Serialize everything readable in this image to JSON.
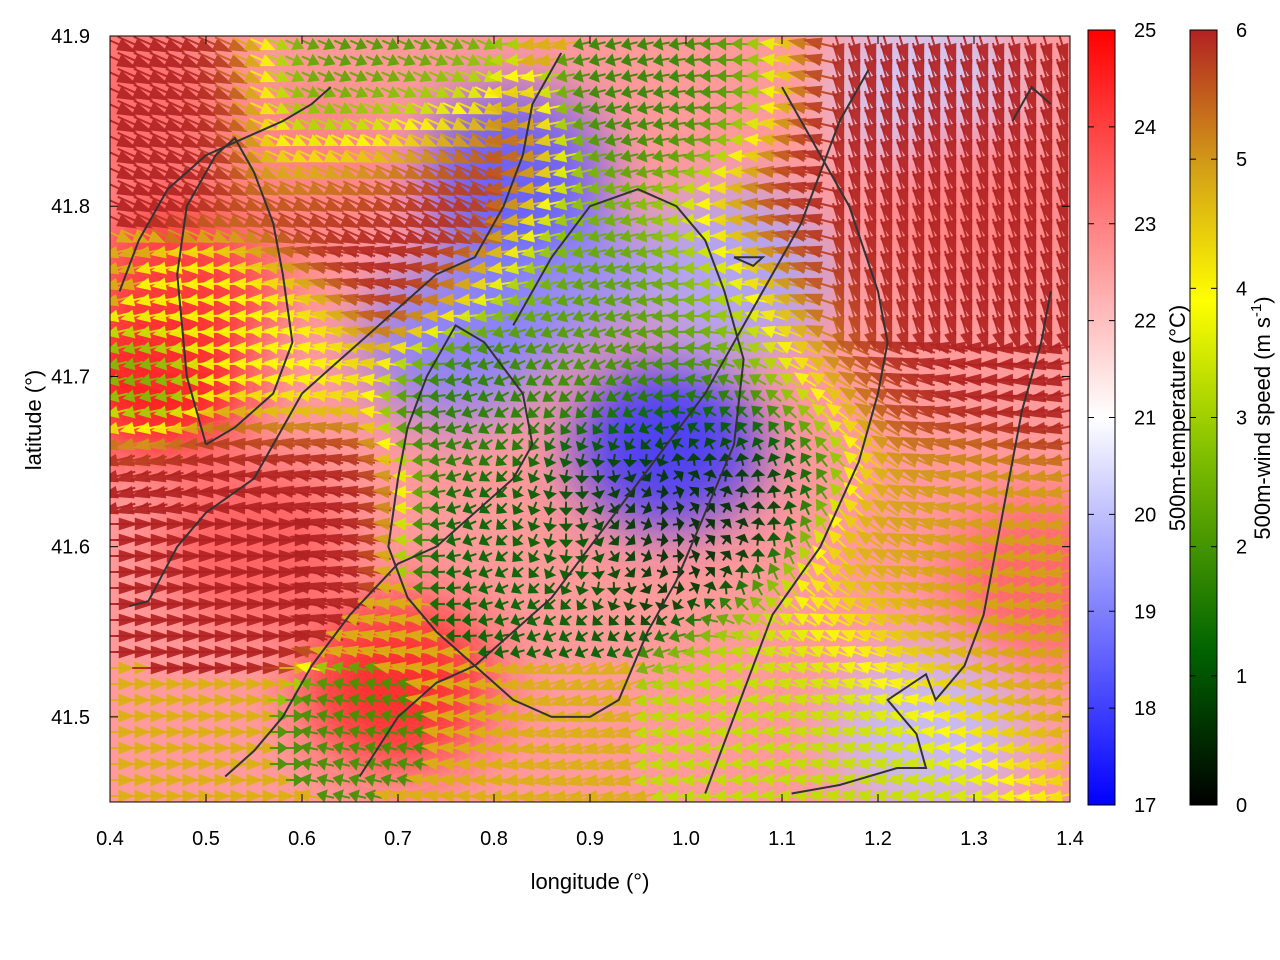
{
  "chart_data": {
    "type": "heatmap",
    "title": "",
    "xlabel": "longitude (°)",
    "ylabel": "latitude (°)",
    "xlim": [
      0.4,
      1.4
    ],
    "ylim": [
      41.45,
      41.9
    ],
    "x_ticks": [
      "0.4",
      "0.5",
      "0.6",
      "0.7",
      "0.8",
      "0.9",
      "1.0",
      "1.1",
      "1.2",
      "1.3",
      "1.4"
    ],
    "y_ticks": [
      "41.5",
      "41.6",
      "41.7",
      "41.8",
      "41.9"
    ],
    "grid": false,
    "layers": {
      "temperature": {
        "label": "500m-temperature (°C)",
        "range": [
          17,
          25
        ],
        "ticks": [
          "17",
          "18",
          "19",
          "20",
          "21",
          "22",
          "23",
          "24",
          "25"
        ],
        "colors": [
          "#0000ff",
          "#ffffff",
          "#ff0000"
        ]
      },
      "wind_speed": {
        "label_main": "500m-wind speed (m s",
        "label_sup": "-1",
        "label_end": ")",
        "range": [
          0,
          6
        ],
        "ticks": [
          "0",
          "1",
          "2",
          "3",
          "4",
          "5",
          "6"
        ],
        "colors": [
          "#000000",
          "#006400",
          "#7fbf00",
          "#ffff00",
          "#d4a017",
          "#b22222"
        ],
        "display": "vector arrows colored by speed"
      },
      "coastline": {
        "color": "#333333",
        "display": "contour lines"
      }
    },
    "temperature_blobs": [
      {
        "lon": 0.98,
        "lat": 41.66,
        "temp": 17.8
      },
      {
        "lon": 0.86,
        "lat": 41.76,
        "temp": 19.2
      },
      {
        "lon": 0.82,
        "lat": 41.82,
        "temp": 18.4
      },
      {
        "lon": 0.76,
        "lat": 41.72,
        "temp": 19.0
      },
      {
        "lon": 1.05,
        "lat": 41.76,
        "temp": 19.6
      },
      {
        "lon": 1.25,
        "lat": 41.49,
        "temp": 20.0
      },
      {
        "lon": 1.25,
        "lat": 41.87,
        "temp": 20.2
      },
      {
        "lon": 0.45,
        "lat": 41.7,
        "temp": 24.8
      },
      {
        "lon": 0.48,
        "lat": 41.76,
        "temp": 24.2
      },
      {
        "lon": 0.7,
        "lat": 41.52,
        "temp": 24.5
      },
      {
        "lon": 0.55,
        "lat": 41.6,
        "temp": 23.6
      },
      {
        "lon": 0.6,
        "lat": 41.82,
        "temp": 23.0
      },
      {
        "lon": 0.42,
        "lat": 41.86,
        "temp": 23.4
      },
      {
        "lon": 1.37,
        "lat": 41.58,
        "temp": 23.5
      },
      {
        "lon": 1.3,
        "lat": 41.8,
        "temp": 23.0
      }
    ],
    "wind_zones": [
      {
        "lon": 0.98,
        "lat": 41.64,
        "speed": 0.4,
        "rad": 0.07
      },
      {
        "lon": 0.85,
        "lat": 41.6,
        "speed": 1.2,
        "rad": 0.05
      },
      {
        "lon": 0.95,
        "lat": 41.72,
        "speed": 2.0,
        "rad": 0.09
      },
      {
        "lon": 0.8,
        "lat": 41.69,
        "speed": 1.5,
        "rad": 0.04
      },
      {
        "lon": 0.65,
        "lat": 41.49,
        "speed": 1.8,
        "rad": 0.03
      },
      {
        "lon": 0.66,
        "lat": 41.87,
        "speed": 1.8,
        "rad": 0.06
      },
      {
        "lon": 1.0,
        "lat": 41.86,
        "speed": 1.6,
        "rad": 0.05
      },
      {
        "lon": 1.17,
        "lat": 41.49,
        "speed": 3.0,
        "rad": 0.08
      },
      {
        "lon": 0.55,
        "lat": 41.72,
        "speed": 3.5,
        "rad": 0.05
      },
      {
        "lon": 0.45,
        "lat": 41.69,
        "speed": 2.0,
        "rad": 0.03
      },
      {
        "lon": 0.7,
        "lat": 41.8,
        "speed": 6.0,
        "rad": 0.07
      },
      {
        "lon": 0.5,
        "lat": 41.62,
        "speed": 6.0,
        "rad": 0.07
      },
      {
        "lon": 0.45,
        "lat": 41.87,
        "speed": 6.0,
        "rad": 0.06
      },
      {
        "lon": 1.22,
        "lat": 41.79,
        "speed": 6.0,
        "rad": 0.1
      },
      {
        "lon": 1.38,
        "lat": 41.72,
        "speed": 6.0,
        "rad": 0.05
      },
      {
        "lon": 1.3,
        "lat": 41.56,
        "speed": 4.8,
        "rad": 0.08
      }
    ],
    "coastlines": [
      [
        [
          0.42,
          41.565
        ],
        [
          0.44,
          41.568
        ],
        [
          0.47,
          41.6
        ],
        [
          0.5,
          41.62
        ],
        [
          0.55,
          41.64
        ],
        [
          0.6,
          41.69
        ],
        [
          0.63,
          41.705
        ],
        [
          0.66,
          41.72
        ],
        [
          0.7,
          41.74
        ],
        [
          0.74,
          41.76
        ],
        [
          0.78,
          41.77
        ],
        [
          0.81,
          41.8
        ],
        [
          0.83,
          41.83
        ],
        [
          0.84,
          41.86
        ],
        [
          0.87,
          41.89
        ]
      ],
      [
        [
          0.52,
          41.465
        ],
        [
          0.55,
          41.48
        ],
        [
          0.58,
          41.5
        ],
        [
          0.61,
          41.53
        ],
        [
          0.65,
          41.56
        ],
        [
          0.7,
          41.59
        ],
        [
          0.74,
          41.6
        ],
        [
          0.78,
          41.62
        ],
        [
          0.82,
          41.64
        ],
        [
          0.84,
          41.66
        ],
        [
          0.83,
          41.69
        ],
        [
          0.79,
          41.72
        ],
        [
          0.76,
          41.73
        ],
        [
          0.73,
          41.7
        ],
        [
          0.71,
          41.67
        ],
        [
          0.7,
          41.64
        ],
        [
          0.69,
          41.6
        ],
        [
          0.71,
          41.57
        ],
        [
          0.74,
          41.55
        ],
        [
          0.76,
          41.54
        ],
        [
          0.78,
          41.53
        ],
        [
          0.8,
          41.52
        ],
        [
          0.82,
          41.51
        ],
        [
          0.86,
          41.5
        ],
        [
          0.9,
          41.5
        ],
        [
          0.93,
          41.51
        ],
        [
          0.96,
          41.55
        ],
        [
          0.99,
          41.58
        ],
        [
          1.02,
          41.62
        ],
        [
          1.05,
          41.66
        ],
        [
          1.06,
          41.71
        ],
        [
          1.04,
          41.75
        ],
        [
          1.02,
          41.78
        ],
        [
          0.99,
          41.8
        ],
        [
          0.95,
          41.81
        ],
        [
          0.9,
          41.8
        ],
        [
          0.86,
          41.77
        ],
        [
          0.82,
          41.73
        ]
      ],
      [
        [
          0.66,
          41.465
        ],
        [
          0.7,
          41.5
        ],
        [
          0.74,
          41.52
        ],
        [
          0.78,
          41.53
        ],
        [
          0.82,
          41.55
        ],
        [
          0.86,
          41.57
        ],
        [
          0.9,
          41.6
        ],
        [
          0.94,
          41.63
        ],
        [
          0.98,
          41.66
        ],
        [
          1.02,
          41.69
        ],
        [
          1.05,
          41.72
        ],
        [
          1.08,
          41.75
        ],
        [
          1.12,
          41.79
        ],
        [
          1.14,
          41.82
        ],
        [
          1.16,
          41.85
        ],
        [
          1.19,
          41.88
        ]
      ],
      [
        [
          1.11,
          41.455
        ],
        [
          1.16,
          41.46
        ],
        [
          1.22,
          41.47
        ],
        [
          1.25,
          41.47
        ],
        [
          1.24,
          41.49
        ],
        [
          1.21,
          41.51
        ],
        [
          1.25,
          41.525
        ],
        [
          1.26,
          41.51
        ],
        [
          1.29,
          41.53
        ],
        [
          1.31,
          41.56
        ],
        [
          1.33,
          41.62
        ],
        [
          1.35,
          41.68
        ],
        [
          1.37,
          41.72
        ],
        [
          1.38,
          41.75
        ]
      ],
      [
        [
          1.02,
          41.455
        ],
        [
          1.05,
          41.5
        ],
        [
          1.09,
          41.56
        ],
        [
          1.14,
          41.6
        ],
        [
          1.18,
          41.65
        ],
        [
          1.2,
          41.69
        ],
        [
          1.21,
          41.72
        ],
        [
          1.2,
          41.75
        ],
        [
          1.17,
          41.8
        ],
        [
          1.13,
          41.84
        ],
        [
          1.1,
          41.87
        ]
      ],
      [
        [
          0.41,
          41.75
        ],
        [
          0.43,
          41.78
        ],
        [
          0.46,
          41.81
        ],
        [
          0.5,
          41.83
        ],
        [
          0.54,
          41.84
        ],
        [
          0.58,
          41.85
        ],
        [
          0.61,
          41.86
        ],
        [
          0.63,
          41.87
        ]
      ],
      [
        [
          0.5,
          41.66
        ],
        [
          0.48,
          41.7
        ],
        [
          0.47,
          41.76
        ],
        [
          0.48,
          41.8
        ],
        [
          0.51,
          41.83
        ],
        [
          0.53,
          41.84
        ],
        [
          0.55,
          41.82
        ],
        [
          0.57,
          41.79
        ],
        [
          0.58,
          41.76
        ],
        [
          0.59,
          41.72
        ],
        [
          0.57,
          41.69
        ],
        [
          0.53,
          41.67
        ],
        [
          0.5,
          41.66
        ]
      ],
      [
        [
          1.05,
          41.77
        ],
        [
          1.08,
          41.77
        ],
        [
          1.07,
          41.765
        ],
        [
          1.05,
          41.77
        ]
      ],
      [
        [
          1.34,
          41.85
        ],
        [
          1.36,
          41.87
        ],
        [
          1.38,
          41.86
        ]
      ]
    ]
  }
}
